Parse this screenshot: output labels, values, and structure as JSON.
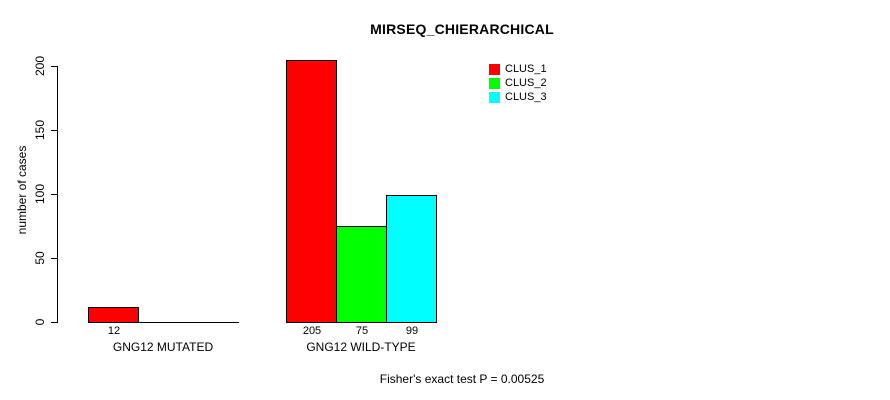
{
  "title": "MIRSEQ_CHIERARCHICAL",
  "footer": "Fisher's exact test P = 0.00525",
  "chart_data": {
    "type": "bar",
    "title": "MIRSEQ_CHIERARCHICAL",
    "categories": [
      "GNG12 MUTATED",
      "GNG12 WILD-TYPE"
    ],
    "series": [
      {
        "name": "CLUS_1",
        "color": "#ff0000",
        "values": [
          12,
          205
        ]
      },
      {
        "name": "CLUS_2",
        "color": "#00ff00",
        "values": [
          0,
          75
        ]
      },
      {
        "name": "CLUS_3",
        "color": "#00ffff",
        "values": [
          0,
          99
        ]
      }
    ],
    "xlabel": "",
    "ylabel": "number of cases",
    "yticks": [
      0,
      50,
      100,
      150,
      200
    ],
    "ylim": [
      0,
      205
    ],
    "grid": false,
    "legend_position": "top-right",
    "bar_value_labels_shown_for_nonzero": true,
    "annotation": "Fisher's exact test P = 0.00525"
  }
}
